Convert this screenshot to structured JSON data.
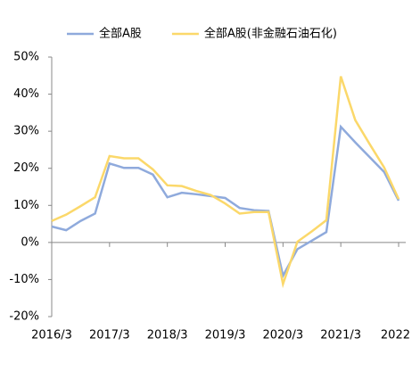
{
  "chart_data": {
    "type": "line",
    "categories": [
      "2016/3",
      null,
      null,
      null,
      "2017/3",
      null,
      null,
      null,
      "2018/3",
      null,
      null,
      null,
      "2019/3",
      null,
      null,
      null,
      "2020/3",
      null,
      null,
      null,
      "2021/3",
      null,
      null,
      null,
      "2022"
    ],
    "series": [
      {
        "name": "全部A股",
        "color": "#8faadc",
        "values": [
          4.3,
          3.3,
          5.8,
          7.8,
          21.3,
          20.1,
          20.1,
          18.3,
          12.2,
          13.4,
          13.0,
          12.5,
          12.0,
          9.3,
          8.7,
          8.5,
          -9.0,
          -1.8,
          0.5,
          2.8,
          31.2,
          27.0,
          23.0,
          19.0,
          11.3
        ]
      },
      {
        "name": "全部A股(非金融石油石化)",
        "color": "#fbd86a",
        "values": [
          5.8,
          7.5,
          9.8,
          12.2,
          23.3,
          22.7,
          22.7,
          19.7,
          15.4,
          15.2,
          13.9,
          12.8,
          10.5,
          7.8,
          8.2,
          8.2,
          -11.2,
          0.2,
          3.0,
          6.0,
          44.8,
          33.0,
          26.5,
          20.2,
          11.7
        ]
      }
    ],
    "ylim": [
      -20,
      50
    ],
    "yticks": [
      {
        "value": -20,
        "label": "-20%"
      },
      {
        "value": -10,
        "label": "-10%"
      },
      {
        "value": 0,
        "label": "0%"
      },
      {
        "value": 10,
        "label": "10%"
      },
      {
        "value": 20,
        "label": "20%"
      },
      {
        "value": 30,
        "label": "30%"
      },
      {
        "value": 40,
        "label": "40%"
      },
      {
        "value": 50,
        "label": "50%"
      }
    ],
    "legend": "top"
  }
}
